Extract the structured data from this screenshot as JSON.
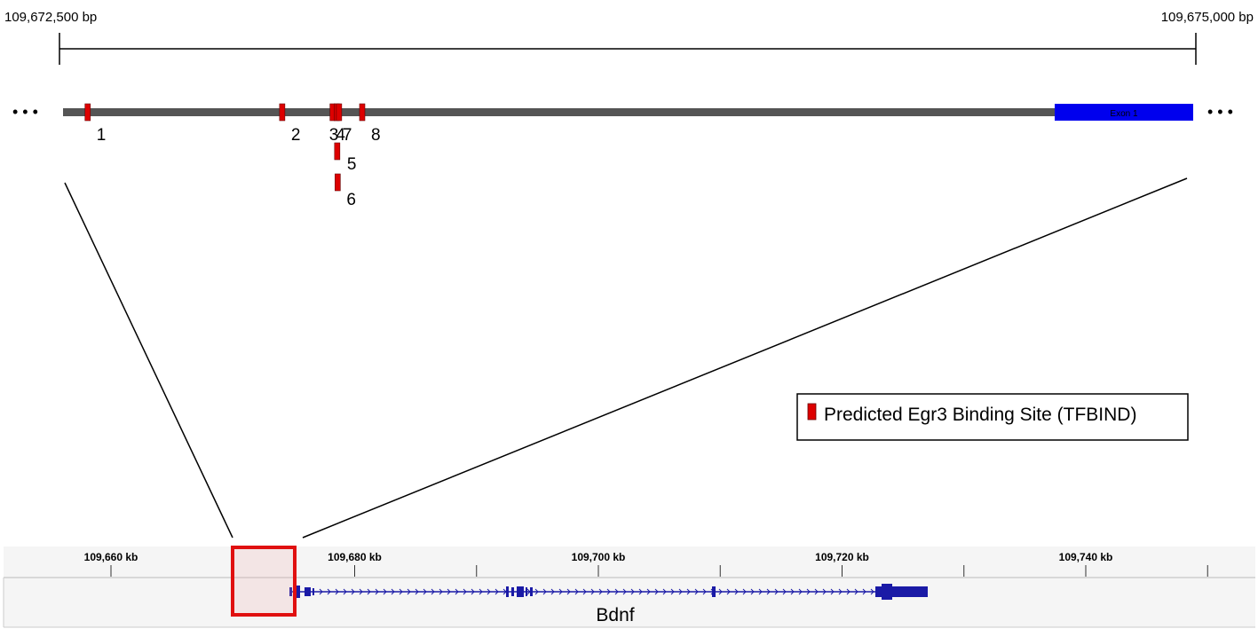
{
  "zoom_view": {
    "start_label": "109,672,500 bp",
    "end_label": "109,675,000 bp",
    "start_bp": 109672500,
    "end_bp": 109675000,
    "ellipsis_left": "• • •",
    "ellipsis_right": "• • •",
    "exon_label": "Exon 1",
    "colors": {
      "backbone": "#555555",
      "exon": "#0000ee",
      "site": "#dd0000"
    },
    "binding_sites": [
      {
        "id": "1",
        "label": "1",
        "bp": 109672562
      },
      {
        "id": "2",
        "label": "2",
        "bp": 109672990
      },
      {
        "id": "3",
        "label": "3",
        "bp": 109673101
      },
      {
        "id": "4",
        "label": "4",
        "bp": 109673110
      },
      {
        "id": "5",
        "label": "5",
        "bp": 109673111
      },
      {
        "id": "6",
        "label": "6",
        "bp": 109673112
      },
      {
        "id": "7",
        "label": "7",
        "bp": 109673115
      },
      {
        "id": "8",
        "label": "8",
        "bp": 109673166
      }
    ]
  },
  "legend": {
    "label": "Predicted Egr3 Binding Site (TFBIND)"
  },
  "genome_track": {
    "ticks": [
      {
        "label": "109,660 kb",
        "kb": 109660
      },
      {
        "label": "109,680 kb",
        "kb": 109680
      },
      {
        "label": "109,700 kb",
        "kb": 109700
      },
      {
        "label": "109,720 kb",
        "kb": 109720
      },
      {
        "label": "109,740 kb",
        "kb": 109740
      }
    ],
    "gene_name": "Bdnf",
    "gene_color": "#1a1aa6",
    "highlight_color": "#e01010"
  }
}
